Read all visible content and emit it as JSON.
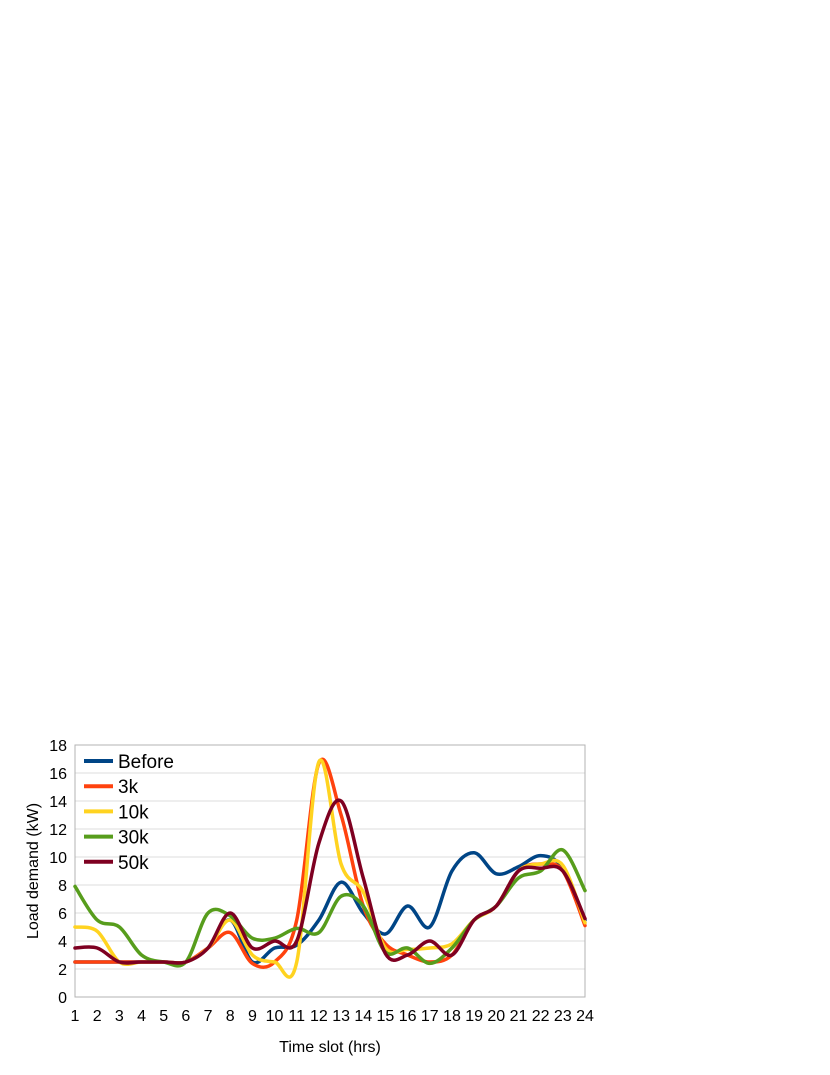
{
  "chart_data": {
    "type": "line",
    "smooth": true,
    "title": "",
    "xlabel": "Time slot (hrs)",
    "ylabel": "Load demand (kW)",
    "x": [
      1,
      2,
      3,
      4,
      5,
      6,
      7,
      8,
      9,
      10,
      11,
      12,
      13,
      14,
      15,
      16,
      17,
      18,
      19,
      20,
      21,
      22,
      23,
      24
    ],
    "xticks": [
      "1",
      "2",
      "3",
      "4",
      "5",
      "6",
      "7",
      "8",
      "9",
      "10",
      "11",
      "12",
      "13",
      "14",
      "15",
      "16",
      "17",
      "18",
      "19",
      "20",
      "21",
      "22",
      "23",
      "24"
    ],
    "xlim": [
      1,
      24
    ],
    "ylim": [
      0,
      18
    ],
    "yticks": [
      0,
      2,
      4,
      6,
      8,
      10,
      12,
      14,
      16,
      18
    ],
    "grid": "horizontal",
    "legend_position": "top-left",
    "series": [
      {
        "name": "Before",
        "color": "#004586",
        "values": [
          2.5,
          2.5,
          2.5,
          2.5,
          2.5,
          2.5,
          3.5,
          5.5,
          2.5,
          3.5,
          3.7,
          5.5,
          8.2,
          6.0,
          4.5,
          6.5,
          5.0,
          9.0,
          10.3,
          8.8,
          9.3,
          10.1,
          9.2,
          5.5
        ]
      },
      {
        "name": "3k",
        "color": "#ff420e",
        "values": [
          2.5,
          2.5,
          2.5,
          2.5,
          2.5,
          2.5,
          3.5,
          4.6,
          2.4,
          2.5,
          5.5,
          16.7,
          13.0,
          6.5,
          3.8,
          3.0,
          2.5,
          3.0,
          5.5,
          6.5,
          9.0,
          9.5,
          9.0,
          5.1
        ]
      },
      {
        "name": "10k",
        "color": "#ffd320",
        "values": [
          5.0,
          4.7,
          2.5,
          2.5,
          2.5,
          2.5,
          3.5,
          5.5,
          3.0,
          2.5,
          2.5,
          16.8,
          9.5,
          7.5,
          3.5,
          3.4,
          3.5,
          3.8,
          5.5,
          6.5,
          9.0,
          9.5,
          9.4,
          5.3
        ]
      },
      {
        "name": "30k",
        "color": "#579d1c",
        "values": [
          7.9,
          5.5,
          5.0,
          3.0,
          2.5,
          2.5,
          6.0,
          5.8,
          4.2,
          4.2,
          4.9,
          4.6,
          7.2,
          6.5,
          3.2,
          3.5,
          2.4,
          3.5,
          5.5,
          6.5,
          8.5,
          9.0,
          10.5,
          7.6
        ]
      },
      {
        "name": "50k",
        "color": "#7e0021",
        "values": [
          3.5,
          3.5,
          2.5,
          2.5,
          2.5,
          2.5,
          3.5,
          6.0,
          3.5,
          4.0,
          4.0,
          11.0,
          14.0,
          8.5,
          3.1,
          3.0,
          4.0,
          3.0,
          5.5,
          6.5,
          9.0,
          9.2,
          9.0,
          5.6
        ]
      }
    ]
  }
}
